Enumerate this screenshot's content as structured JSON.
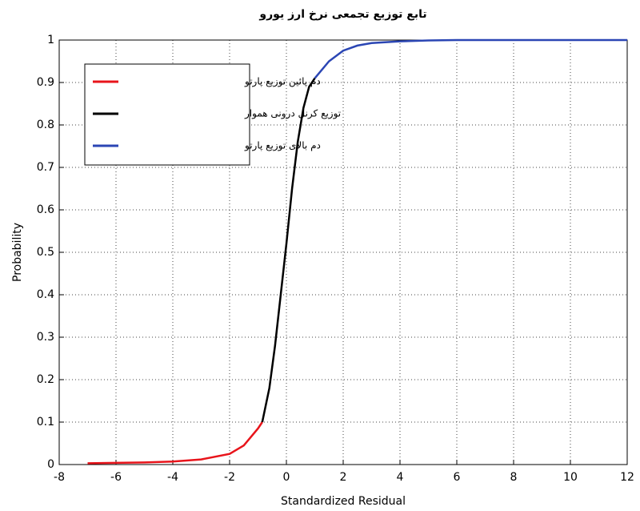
{
  "chart_data": {
    "type": "line",
    "title": "تابع توزیع تجمعی نرخ ارز یورو",
    "xlabel": "Standardized Residual",
    "ylabel": "Probability",
    "xlim": [
      -8,
      12
    ],
    "ylim": [
      0,
      1
    ],
    "xticks": [
      -8,
      -6,
      -4,
      -2,
      0,
      2,
      4,
      6,
      8,
      10,
      12
    ],
    "yticks": [
      0,
      0.1,
      0.2,
      0.3,
      0.4,
      0.5,
      0.6,
      0.7,
      0.8,
      0.9,
      1
    ],
    "grid": true,
    "legend": "upper left",
    "series": [
      {
        "name": "دم پائین توزیع پارتو",
        "color": "#e8141b",
        "x": [
          -7,
          -6,
          -5,
          -4,
          -3,
          -2,
          -1.5,
          -1,
          -0.85
        ],
        "values": [
          0.003,
          0.004,
          0.005,
          0.007,
          0.012,
          0.025,
          0.045,
          0.085,
          0.1
        ]
      },
      {
        "name": "توزیع کرنل درونی هموار",
        "color": "#000000",
        "x": [
          -0.85,
          -0.6,
          -0.4,
          -0.2,
          0,
          0.2,
          0.4,
          0.6,
          0.8,
          1
        ],
        "values": [
          0.1,
          0.18,
          0.28,
          0.4,
          0.52,
          0.65,
          0.76,
          0.84,
          0.89,
          0.91
        ]
      },
      {
        "name": "دم بالای توزیع پارتو",
        "color": "#2b46b4",
        "x": [
          1,
          1.5,
          2,
          2.5,
          3,
          4,
          5,
          6,
          8,
          10,
          12
        ],
        "values": [
          0.91,
          0.95,
          0.975,
          0.987,
          0.993,
          0.997,
          0.999,
          1,
          1,
          1,
          1
        ]
      }
    ]
  }
}
